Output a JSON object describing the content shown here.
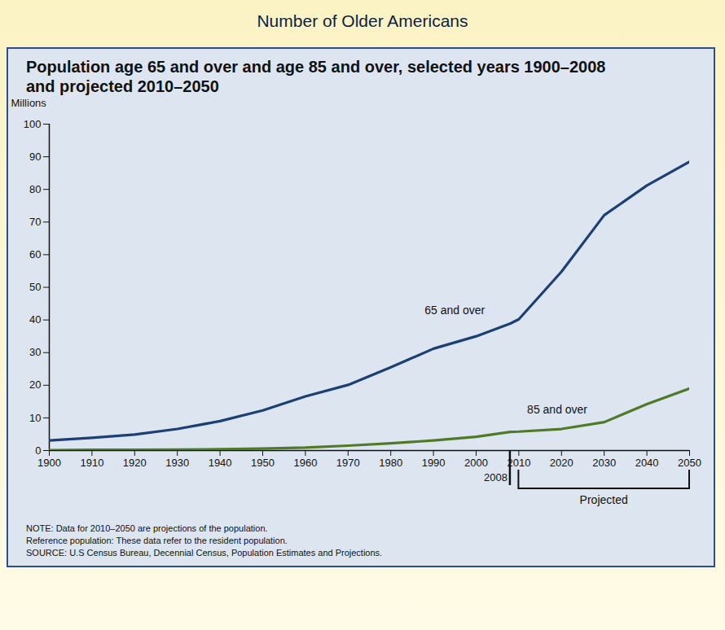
{
  "chart_data": {
    "type": "line",
    "header": "Number of Older Americans",
    "title": "Population age 65 and over and age 85 and over, selected years 1900–2008 and projected 2010–2050",
    "y_label": "Millions",
    "x": [
      1900,
      1910,
      1920,
      1930,
      1940,
      1950,
      1960,
      1970,
      1980,
      1990,
      2000,
      2008,
      2010,
      2020,
      2030,
      2040,
      2050
    ],
    "series": [
      {
        "name": "65 and over",
        "color": "#1c3f74",
        "values": [
          3.1,
          3.9,
          4.9,
          6.6,
          9.0,
          12.3,
          16.6,
          20.1,
          25.5,
          31.2,
          35.0,
          38.9,
          40.2,
          54.8,
          72.1,
          81.2,
          88.5
        ]
      },
      {
        "name": "85 and over",
        "color": "#4f7a28",
        "values": [
          0.1,
          0.2,
          0.2,
          0.3,
          0.4,
          0.6,
          0.9,
          1.5,
          2.2,
          3.1,
          4.2,
          5.7,
          5.8,
          6.6,
          8.7,
          14.2,
          19.0
        ]
      }
    ],
    "xlim": [
      1900,
      2050
    ],
    "xticks": [
      1900,
      1910,
      1920,
      1930,
      1940,
      1950,
      1960,
      1970,
      1980,
      1990,
      2000,
      2010,
      2020,
      2030,
      2040,
      2050
    ],
    "ylim": [
      0,
      100
    ],
    "yticks": [
      0,
      10,
      20,
      30,
      40,
      50,
      60,
      70,
      80,
      90,
      100
    ],
    "grid": false,
    "annotations": [
      {
        "text": "65 and over",
        "x": 1995,
        "y": 43
      },
      {
        "text": "85 and over",
        "x": 2019,
        "y": 12.5
      },
      {
        "text": "2008",
        "x": 2008
      },
      {
        "text": "Projected",
        "x": [
          2010,
          2050
        ]
      }
    ],
    "notes": [
      "NOTE: Data for 2010–2050 are projections of the population.",
      "Reference population: These data refer to the resident population.",
      "SOURCE: U.S Census Bureau, Decennial Census, Population Estimates and Projections."
    ]
  }
}
